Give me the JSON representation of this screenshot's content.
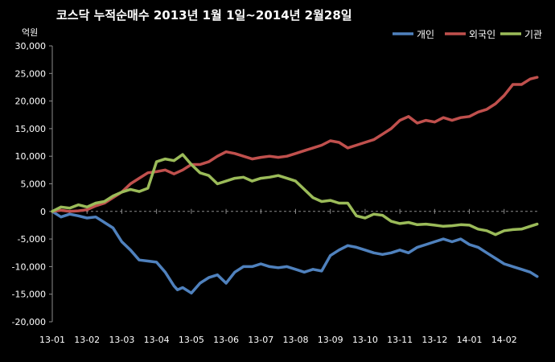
{
  "chart_data": {
    "type": "line",
    "title": "코스닥  누적순매수 2013년 1월 1일~2014년 2월28일",
    "ylabel": "억원",
    "xlabel": "",
    "ylim": [
      -20000,
      30000
    ],
    "yticks": [
      30000,
      25000,
      20000,
      15000,
      10000,
      5000,
      0,
      -5000,
      -10000,
      -15000,
      -20000
    ],
    "ytick_labels": [
      "30,000",
      "25,000",
      "20,000",
      "15,000",
      "10,000",
      "5,000",
      "0",
      "-5,000",
      "-10,000",
      "-15,000",
      "-20,000"
    ],
    "x_range": [
      0,
      14
    ],
    "xticks": [
      0,
      1,
      2,
      3,
      4,
      5,
      6,
      7,
      8,
      9,
      10,
      11,
      12,
      13
    ],
    "xtick_labels": [
      "13-01",
      "13-02",
      "13-03",
      "13-04",
      "13-05",
      "13-06",
      "13-07",
      "13-08",
      "13-09",
      "13-10",
      "13-11",
      "13-12",
      "14-01",
      "14-02"
    ],
    "grid": "horizontal dashed at 0, vertical dashed at month starts",
    "legend_position": "top-right",
    "background": "#000000",
    "series": [
      {
        "name": "개인",
        "color": "#4f81bd",
        "x": [
          0,
          0.25,
          0.5,
          0.75,
          1.0,
          1.25,
          1.5,
          1.75,
          2.0,
          2.25,
          2.5,
          2.75,
          3.0,
          3.25,
          3.5,
          3.6,
          3.75,
          4.0,
          4.25,
          4.5,
          4.75,
          5.0,
          5.25,
          5.5,
          5.75,
          6.0,
          6.25,
          6.5,
          6.75,
          7.0,
          7.25,
          7.5,
          7.75,
          8.0,
          8.25,
          8.5,
          8.75,
          9.0,
          9.25,
          9.5,
          9.75,
          10.0,
          10.25,
          10.5,
          10.75,
          11.0,
          11.25,
          11.5,
          11.75,
          12.0,
          12.25,
          12.5,
          12.75,
          13.0,
          13.25,
          13.5,
          13.75,
          13.95
        ],
        "y": [
          0,
          -1000,
          -500,
          -800,
          -1200,
          -1000,
          -2000,
          -3000,
          -5500,
          -7000,
          -8800,
          -9000,
          -9200,
          -11000,
          -13500,
          -14200,
          -13800,
          -14800,
          -13000,
          -12000,
          -11500,
          -13000,
          -11000,
          -10000,
          -10000,
          -9500,
          -10000,
          -10200,
          -10000,
          -10500,
          -11000,
          -10500,
          -10800,
          -8000,
          -7000,
          -6200,
          -6500,
          -7000,
          -7500,
          -7800,
          -7500,
          -7000,
          -7500,
          -6500,
          -6000,
          -5500,
          -5000,
          -5500,
          -5000,
          -6000,
          -6500,
          -7500,
          -8500,
          -9500,
          -10000,
          -10500,
          -11000,
          -11800
        ]
      },
      {
        "name": "외국인",
        "color": "#c0504d",
        "x": [
          0,
          0.25,
          0.5,
          0.75,
          1.0,
          1.25,
          1.5,
          1.75,
          2.0,
          2.25,
          2.5,
          2.75,
          3.0,
          3.25,
          3.5,
          3.75,
          4.0,
          4.25,
          4.5,
          4.75,
          5.0,
          5.25,
          5.5,
          5.75,
          6.0,
          6.25,
          6.5,
          6.75,
          7.0,
          7.25,
          7.5,
          7.75,
          8.0,
          8.25,
          8.5,
          8.75,
          9.0,
          9.25,
          9.5,
          9.75,
          10.0,
          10.25,
          10.5,
          10.75,
          11.0,
          11.25,
          11.5,
          11.75,
          12.0,
          12.25,
          12.5,
          12.75,
          13.0,
          13.25,
          13.5,
          13.75,
          13.95
        ],
        "y": [
          0,
          200,
          0,
          100,
          300,
          1000,
          1500,
          2500,
          3500,
          5000,
          6000,
          7000,
          7200,
          7500,
          6800,
          7500,
          8500,
          8500,
          9000,
          10000,
          10800,
          10500,
          10000,
          9500,
          9800,
          10000,
          9800,
          10000,
          10500,
          11000,
          11500,
          12000,
          12800,
          12500,
          11500,
          12000,
          12500,
          13000,
          14000,
          15000,
          16500,
          17200,
          16000,
          16500,
          16200,
          17000,
          16500,
          17000,
          17200,
          18000,
          18500,
          19500,
          21000,
          23000,
          23000,
          24000,
          24300
        ]
      },
      {
        "name": "기관",
        "color": "#9bbb59",
        "x": [
          0,
          0.25,
          0.5,
          0.75,
          1.0,
          1.25,
          1.5,
          1.75,
          2.0,
          2.25,
          2.5,
          2.75,
          3.0,
          3.25,
          3.5,
          3.75,
          4.0,
          4.25,
          4.5,
          4.75,
          5.0,
          5.25,
          5.5,
          5.75,
          6.0,
          6.25,
          6.5,
          6.75,
          7.0,
          7.25,
          7.5,
          7.75,
          8.0,
          8.25,
          8.5,
          8.75,
          9.0,
          9.25,
          9.5,
          9.75,
          10.0,
          10.25,
          10.5,
          10.75,
          11.0,
          11.25,
          11.5,
          11.75,
          12.0,
          12.25,
          12.5,
          12.75,
          13.0,
          13.25,
          13.5,
          13.75,
          13.95
        ],
        "y": [
          0,
          800,
          600,
          1200,
          800,
          1500,
          1800,
          2800,
          3500,
          4000,
          3600,
          4200,
          9000,
          9500,
          9200,
          10300,
          8500,
          7000,
          6500,
          5000,
          5500,
          6000,
          6200,
          5500,
          6000,
          6200,
          6500,
          6000,
          5500,
          4000,
          2500,
          1800,
          2000,
          1500,
          1500,
          -800,
          -1200,
          -500,
          -700,
          -1800,
          -2200,
          -2000,
          -2400,
          -2300,
          -2500,
          -2700,
          -2600,
          -2400,
          -2500,
          -3200,
          -3500,
          -4200,
          -3500,
          -3300,
          -3200,
          -2700,
          -2300
        ]
      }
    ]
  }
}
